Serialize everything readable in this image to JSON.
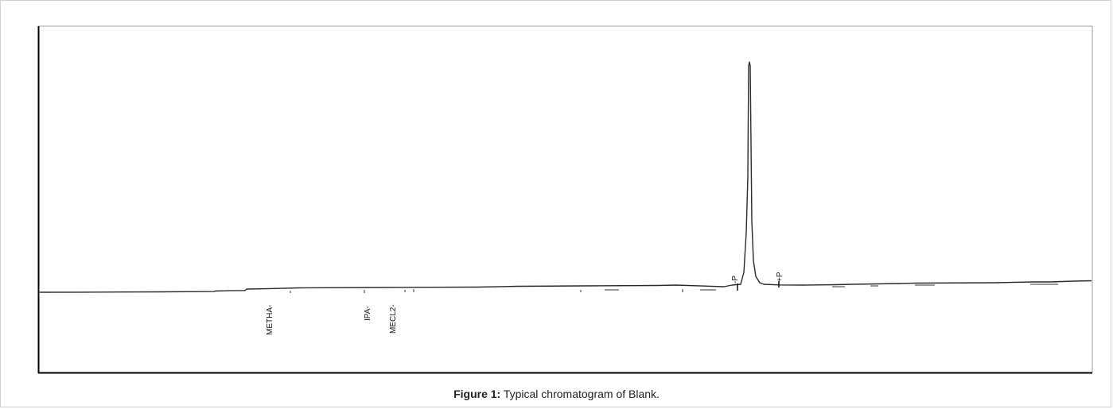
{
  "chart_data": {
    "type": "line",
    "title": "",
    "xlabel": "",
    "ylabel": "",
    "grid": false,
    "legend": "none",
    "series": [
      {
        "points": [
          [
            0,
            0
          ],
          [
            50,
            0.1
          ],
          [
            100,
            0.3
          ],
          [
            150,
            0.5
          ],
          [
            200,
            0.8
          ],
          [
            219,
            0.85
          ],
          [
            220,
            1.5
          ],
          [
            230,
            1.8
          ],
          [
            240,
            2.1
          ],
          [
            258,
            2.2
          ],
          [
            260,
            4
          ],
          [
            290,
            4.6
          ],
          [
            325,
            5.5
          ],
          [
            420,
            6
          ],
          [
            550,
            6.5
          ],
          [
            600,
            7.5
          ],
          [
            680,
            8
          ],
          [
            775,
            8.5
          ],
          [
            800,
            9
          ],
          [
            860,
            7
          ],
          [
            870,
            9
          ],
          [
            875,
            9.5
          ],
          [
            881,
            10
          ],
          [
            885,
            25
          ],
          [
            888,
            75
          ],
          [
            890,
            145
          ],
          [
            891,
            285
          ],
          [
            892,
            290
          ],
          [
            893,
            285
          ],
          [
            895,
            90
          ],
          [
            897,
            40
          ],
          [
            900,
            20
          ],
          [
            905,
            12
          ],
          [
            910,
            10
          ],
          [
            930,
            9.2
          ],
          [
            960,
            9
          ],
          [
            1000,
            9.5
          ],
          [
            1020,
            10
          ],
          [
            1050,
            10.5
          ],
          [
            1080,
            11
          ],
          [
            1100,
            11.5
          ],
          [
            1200,
            12
          ],
          [
            1249,
            13
          ],
          [
            1270,
            13
          ],
          [
            1300,
            14
          ],
          [
            1322,
            14.5
          ]
        ]
      }
    ],
    "ylim": [
      0,
      300
    ]
  },
  "labels": {
    "metha": "METHA-",
    "ipa": "IPA-",
    "mecl2": "MECL2-",
    "p_start": "-P",
    "p_end": "+P"
  },
  "caption": {
    "prefix": "Figure 1:",
    "text": " Typical chromatogram of Blank."
  },
  "colors": {
    "trace": "#2a2a2a",
    "axis": "#000000",
    "frame": "#9e9e9e"
  }
}
